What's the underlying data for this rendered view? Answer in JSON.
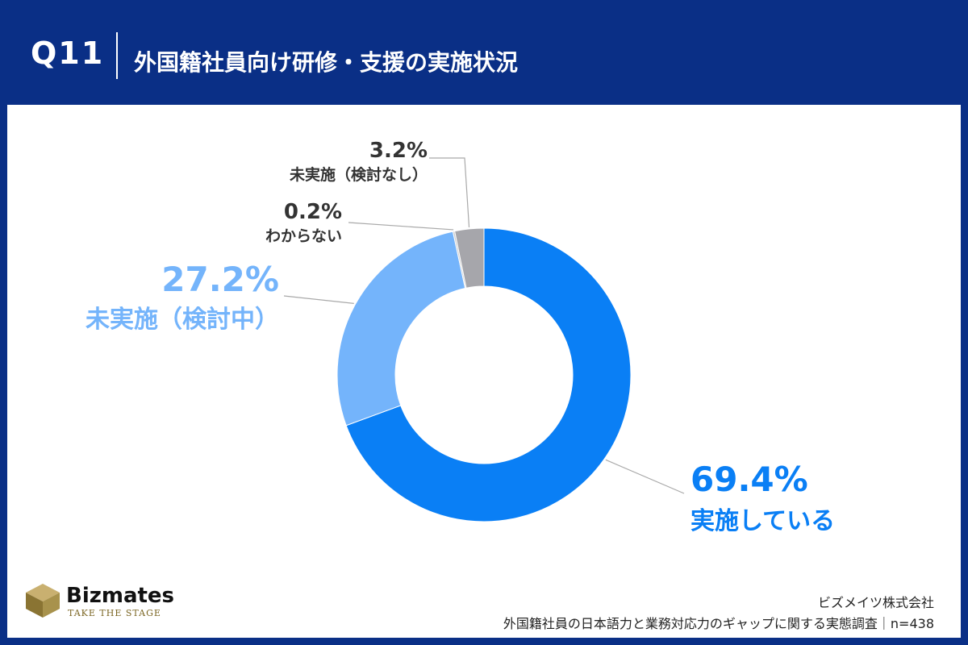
{
  "header": {
    "question_number": "Q11",
    "title": "外国籍社員向け研修・支援の実施状況"
  },
  "chart_data": {
    "type": "pie",
    "donut": true,
    "slices": [
      {
        "label": "実施している",
        "value": 69.4,
        "value_text": "69.4%",
        "color": "#0a7ff5"
      },
      {
        "label": "未実施（検討中）",
        "value": 27.2,
        "value_text": "27.2%",
        "color": "#74b4fb"
      },
      {
        "label": "わからない",
        "value": 0.2,
        "value_text": "0.2%",
        "color": "#c9c9c9"
      },
      {
        "label": "未実施（検討なし）",
        "value": 3.2,
        "value_text": "3.2%",
        "color": "#a6a6ab"
      }
    ]
  },
  "footer": {
    "brand": "Bizmates",
    "tagline": "TAKE THE STAGE",
    "source_company": "ビズメイツ株式会社",
    "source_survey": "外国籍社員の日本語力と業務対応力のギャップに関する実態調査｜n=438"
  }
}
